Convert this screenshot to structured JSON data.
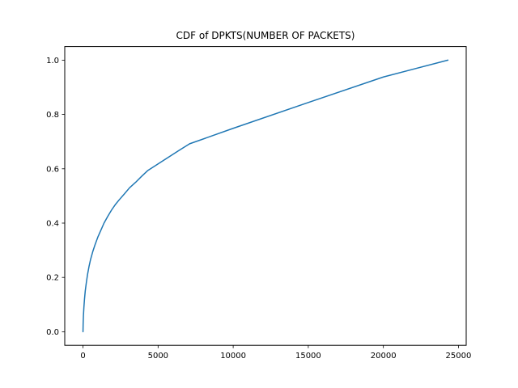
{
  "chart_data": {
    "type": "line",
    "title": "CDF of DPKTS(NUMBER OF PACKETS)",
    "xlabel": "",
    "ylabel": "",
    "xlim": [
      -1215,
      25515
    ],
    "ylim": [
      -0.05,
      1.05
    ],
    "x_ticks": [
      0,
      5000,
      10000,
      15000,
      20000,
      25000
    ],
    "x_tick_labels": [
      "0",
      "5000",
      "10000",
      "15000",
      "20000",
      "25000"
    ],
    "y_ticks": [
      0.0,
      0.2,
      0.4,
      0.6,
      0.8,
      1.0
    ],
    "y_tick_labels": [
      "0.0",
      "0.2",
      "0.4",
      "0.6",
      "0.8",
      "1.0"
    ],
    "grid": false,
    "legend": "none",
    "series": [
      {
        "color": "#1f77b4",
        "x": [
          0,
          10,
          30,
          60,
          100,
          150,
          220,
          300,
          400,
          500,
          650,
          800,
          1000,
          1200,
          1400,
          1650,
          1900,
          2150,
          2400,
          2750,
          3100,
          3500,
          3900,
          4300,
          5000,
          5700,
          6400,
          7100,
          10000,
          15000,
          20000,
          24300
        ],
        "y": [
          0.0,
          0.03,
          0.06,
          0.09,
          0.12,
          0.15,
          0.18,
          0.21,
          0.24,
          0.265,
          0.295,
          0.32,
          0.35,
          0.375,
          0.4,
          0.425,
          0.448,
          0.468,
          0.485,
          0.507,
          0.53,
          0.55,
          0.572,
          0.593,
          0.618,
          0.643,
          0.668,
          0.692,
          0.749,
          0.844,
          0.938,
          1.0
        ]
      }
    ]
  }
}
